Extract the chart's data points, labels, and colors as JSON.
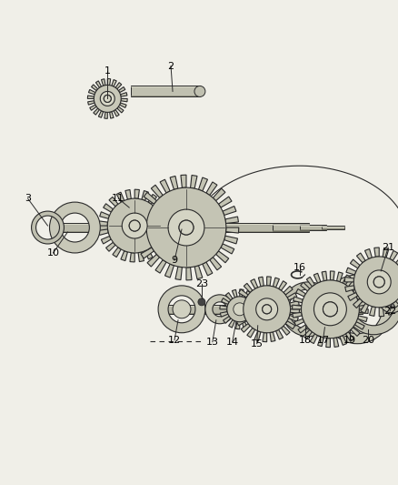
{
  "bg": "#f0efe8",
  "lc": "#2a2a2a",
  "fig_w": 4.39,
  "fig_h": 5.33,
  "dpi": 100
}
